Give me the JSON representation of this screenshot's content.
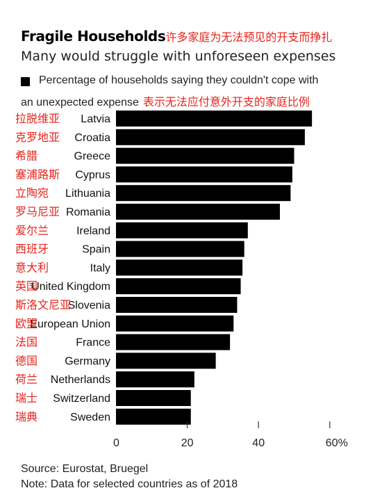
{
  "header": {
    "title": "Fragile Households",
    "title_annotation_cn": "许多家庭为无法预见的开支而挣扎",
    "subtitle": "Many would struggle with unforeseen expenses"
  },
  "legend": {
    "line1": "Percentage of households saying they couldn't cope with",
    "line2": "an unexpected expense",
    "annotation_cn": "表示无法应付意外开支的家庭比例"
  },
  "chart_data": {
    "type": "bar",
    "orientation": "horizontal",
    "categories": [
      "Latvia",
      "Croatia",
      "Greece",
      "Cyprus",
      "Lithuania",
      "Romania",
      "Ireland",
      "Spain",
      "Italy",
      "United Kingdom",
      "Slovenia",
      "European Union",
      "France",
      "Germany",
      "Netherlands",
      "Switzerland",
      "Sweden"
    ],
    "categories_cn": [
      "拉脱维亚",
      "克罗地亚",
      "希腊",
      "塞浦路斯",
      "立陶宛",
      "罗马尼亚",
      "爱尔兰",
      "西班牙",
      "意大利",
      "英国",
      "斯洛文尼亚",
      "欧盟",
      "法国",
      "德国",
      "荷兰",
      "瑞士",
      "瑞典"
    ],
    "series": [
      {
        "values": [
          55,
          53,
          50,
          49.5,
          49,
          46,
          37,
          36,
          35.5,
          35,
          34,
          33,
          32,
          28,
          22,
          21,
          21
        ]
      }
    ],
    "xlim": [
      0,
      60
    ],
    "xticks": [
      0,
      20,
      40,
      60
    ],
    "xtick_labels": [
      "0",
      "20",
      "40",
      "60%"
    ],
    "bar_color": "#000000",
    "annotation_color": "#e8221a"
  },
  "footer": {
    "source": "Source: Eurostat, Bruegel",
    "note": "Note: Data for selected countries as of 2018"
  }
}
